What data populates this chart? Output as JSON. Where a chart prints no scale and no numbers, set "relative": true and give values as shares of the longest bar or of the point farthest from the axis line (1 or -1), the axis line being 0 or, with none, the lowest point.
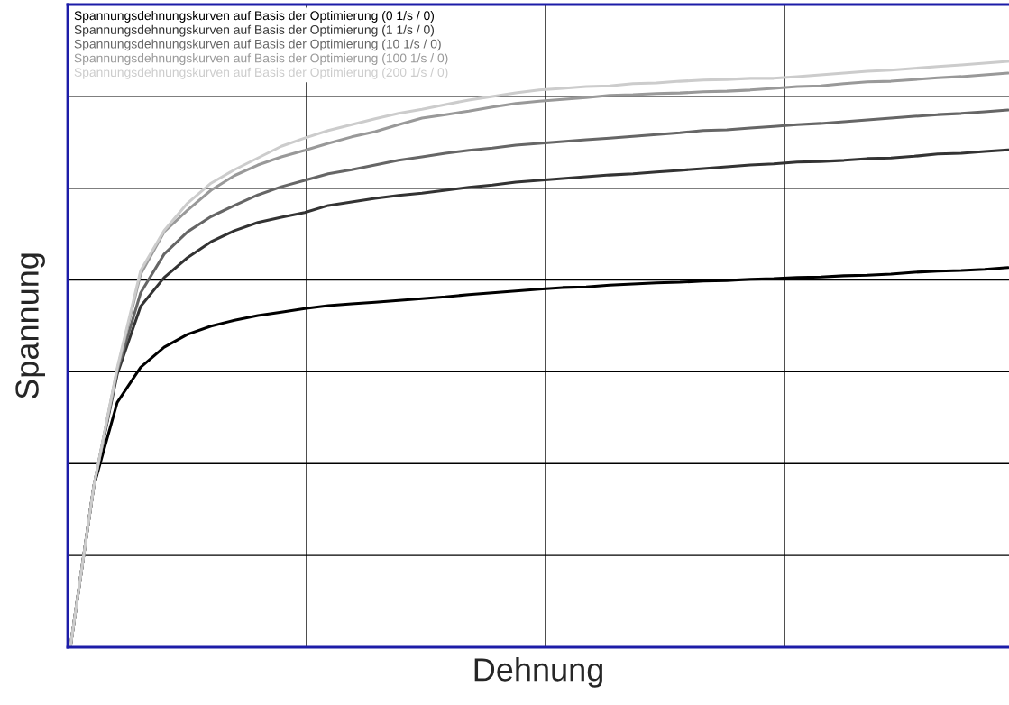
{
  "chart_data": {
    "type": "line",
    "xlabel": "Dehnung",
    "ylabel": "Spannung",
    "relative": true,
    "grid": true,
    "legend": "top left",
    "marker": "none",
    "line_style": "solid",
    "categories": [
      null,
      null,
      null,
      null,
      null,
      null,
      null,
      null,
      null,
      null,
      null,
      null,
      null,
      null,
      null,
      null,
      null,
      null,
      null,
      null,
      null,
      null,
      null,
      null,
      null,
      null,
      null,
      null,
      null,
      null,
      null,
      null,
      null,
      null,
      null,
      null,
      null,
      null,
      null,
      null,
      null
    ],
    "series": [
      {
        "name": "Spannungsdehnungskurven auf Basis der Optimierung (0 1/s / 0)",
        "color": "#000000",
        "values": [
          0,
          0.275,
          0.418,
          0.478,
          0.512,
          0.534,
          0.548,
          0.558,
          0.566,
          0.572,
          0.578,
          0.583,
          0.586,
          0.589,
          0.592,
          0.595,
          0.598,
          0.602,
          0.605,
          0.608,
          0.611,
          0.614,
          0.615,
          0.618,
          0.62,
          0.622,
          0.623,
          0.625,
          0.626,
          0.628,
          0.629,
          0.631,
          0.632,
          0.634,
          0.635,
          0.637,
          0.64,
          0.642,
          0.643,
          0.645,
          0.648
        ]
      },
      {
        "name": "Spannungsdehnungskurven auf Basis der Optimierung (1 1/s / 0)",
        "color": "#333333",
        "values": [
          0,
          0.275,
          0.466,
          0.582,
          0.631,
          0.665,
          0.692,
          0.711,
          0.725,
          0.734,
          0.742,
          0.754,
          0.76,
          0.766,
          0.771,
          0.775,
          0.78,
          0.785,
          0.789,
          0.794,
          0.797,
          0.8,
          0.803,
          0.806,
          0.808,
          0.811,
          0.814,
          0.817,
          0.82,
          0.823,
          0.825,
          0.828,
          0.829,
          0.831,
          0.834,
          0.835,
          0.838,
          0.842,
          0.843,
          0.846,
          0.849
        ]
      },
      {
        "name": "Spannungsdehnungskurven auf Basis der Optimierung (10 1/s / 0)",
        "color": "#666666",
        "values": [
          0,
          0.275,
          0.471,
          0.605,
          0.671,
          0.709,
          0.735,
          0.754,
          0.772,
          0.786,
          0.797,
          0.808,
          0.815,
          0.823,
          0.831,
          0.837,
          0.843,
          0.848,
          0.852,
          0.857,
          0.86,
          0.863,
          0.866,
          0.869,
          0.872,
          0.875,
          0.878,
          0.882,
          0.883,
          0.886,
          0.889,
          0.892,
          0.894,
          0.897,
          0.9,
          0.903,
          0.906,
          0.909,
          0.911,
          0.914,
          0.917
        ]
      },
      {
        "name": "Spannungsdehnungskurven auf Basis der Optimierung (100 1/s / 0)",
        "color": "#999999",
        "values": [
          0,
          0.275,
          0.474,
          0.637,
          0.709,
          0.746,
          0.78,
          0.805,
          0.823,
          0.837,
          0.848,
          0.86,
          0.871,
          0.88,
          0.892,
          0.903,
          0.909,
          0.915,
          0.922,
          0.928,
          0.932,
          0.935,
          0.938,
          0.942,
          0.943,
          0.945,
          0.946,
          0.948,
          0.949,
          0.951,
          0.954,
          0.957,
          0.958,
          0.962,
          0.965,
          0.966,
          0.969,
          0.972,
          0.974,
          0.977,
          0.98
        ]
      },
      {
        "name": "Spannungsdehnungskurven auf Basis der Optimierung (200 1/s / 0)",
        "color": "#cccccc",
        "values": [
          0,
          0.275,
          0.477,
          0.643,
          0.711,
          0.758,
          0.792,
          0.815,
          0.835,
          0.855,
          0.869,
          0.882,
          0.892,
          0.902,
          0.911,
          0.918,
          0.926,
          0.934,
          0.94,
          0.946,
          0.951,
          0.954,
          0.957,
          0.958,
          0.962,
          0.963,
          0.966,
          0.968,
          0.969,
          0.971,
          0.971,
          0.974,
          0.977,
          0.98,
          0.983,
          0.985,
          0.988,
          0.991,
          0.994,
          0.997,
          1
        ]
      }
    ]
  }
}
